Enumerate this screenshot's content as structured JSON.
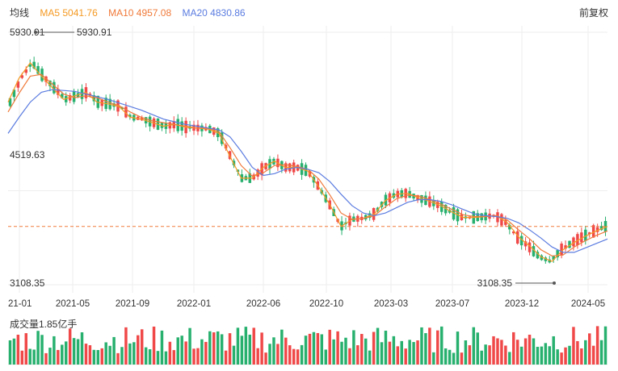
{
  "header": {
    "title": "均线",
    "ma5": "MA5 5041.76",
    "ma10": "MA10 4957.08",
    "ma20": "MA20 4830.86",
    "restore_label": "前复权"
  },
  "colors": {
    "up": "#f04848",
    "down": "#27b06e",
    "ma5": "#f59a23",
    "ma10": "#f07a3a",
    "ma20": "#5b7ce0",
    "dashed": "#f07a3a",
    "grid": "#eeeeee"
  },
  "volume_title": "成交量1.85亿手",
  "chart_data": {
    "type": "candlestick",
    "y_labels": [
      "5930.91",
      "4519.63",
      "3108.35"
    ],
    "ylim": [
      3108.35,
      5930.91
    ],
    "x_labels": [
      "21-01",
      "2021-05",
      "2021-09",
      "2022-01",
      "2022-06",
      "2022-10",
      "2023-03",
      "2023-07",
      "2023-12",
      "2024-05"
    ],
    "max_annotation": "5930.91",
    "min_annotation": "3108.35",
    "last_close": 3760,
    "series": [
      {
        "name": "MA5",
        "color": "#f59a23",
        "values": [
          5150,
          5420,
          5590,
          5440,
          5310,
          5180,
          5220,
          5260,
          5150,
          5130,
          5100,
          4980,
          4960,
          4920,
          4880,
          4900,
          4870,
          4860,
          4850,
          4800,
          4540,
          4300,
          4300,
          4420,
          4490,
          4420,
          4420,
          4380,
          4200,
          4000,
          3760,
          3840,
          3850,
          3900,
          4050,
          4120,
          4130,
          4080,
          4040,
          3990,
          3920,
          3860,
          3860,
          3870,
          3880,
          3800,
          3640,
          3540,
          3420,
          3370,
          3500,
          3580,
          3650,
          3710,
          3760
        ]
      },
      {
        "name": "MA10",
        "color": "#f07a3a",
        "values": [
          5040,
          5250,
          5440,
          5460,
          5350,
          5240,
          5200,
          5220,
          5200,
          5150,
          5110,
          5040,
          4980,
          4940,
          4920,
          4900,
          4880,
          4860,
          4860,
          4820,
          4640,
          4440,
          4320,
          4360,
          4440,
          4450,
          4430,
          4400,
          4290,
          4110,
          3910,
          3840,
          3850,
          3880,
          3980,
          4070,
          4110,
          4100,
          4060,
          4010,
          3950,
          3890,
          3870,
          3870,
          3880,
          3830,
          3720,
          3620,
          3500,
          3430,
          3440,
          3530,
          3600,
          3660,
          3710
        ]
      },
      {
        "name": "MA20",
        "color": "#5b7ce0",
        "values": [
          4800,
          4980,
          5150,
          5260,
          5290,
          5280,
          5270,
          5240,
          5210,
          5180,
          5140,
          5100,
          5060,
          5010,
          4960,
          4930,
          4900,
          4880,
          4860,
          4840,
          4760,
          4600,
          4420,
          4330,
          4350,
          4400,
          4420,
          4400,
          4360,
          4260,
          4120,
          3990,
          3910,
          3880,
          3910,
          3970,
          4030,
          4060,
          4060,
          4040,
          4000,
          3950,
          3900,
          3880,
          3870,
          3850,
          3800,
          3720,
          3630,
          3530,
          3470,
          3470,
          3520,
          3570,
          3620
        ]
      }
    ]
  }
}
